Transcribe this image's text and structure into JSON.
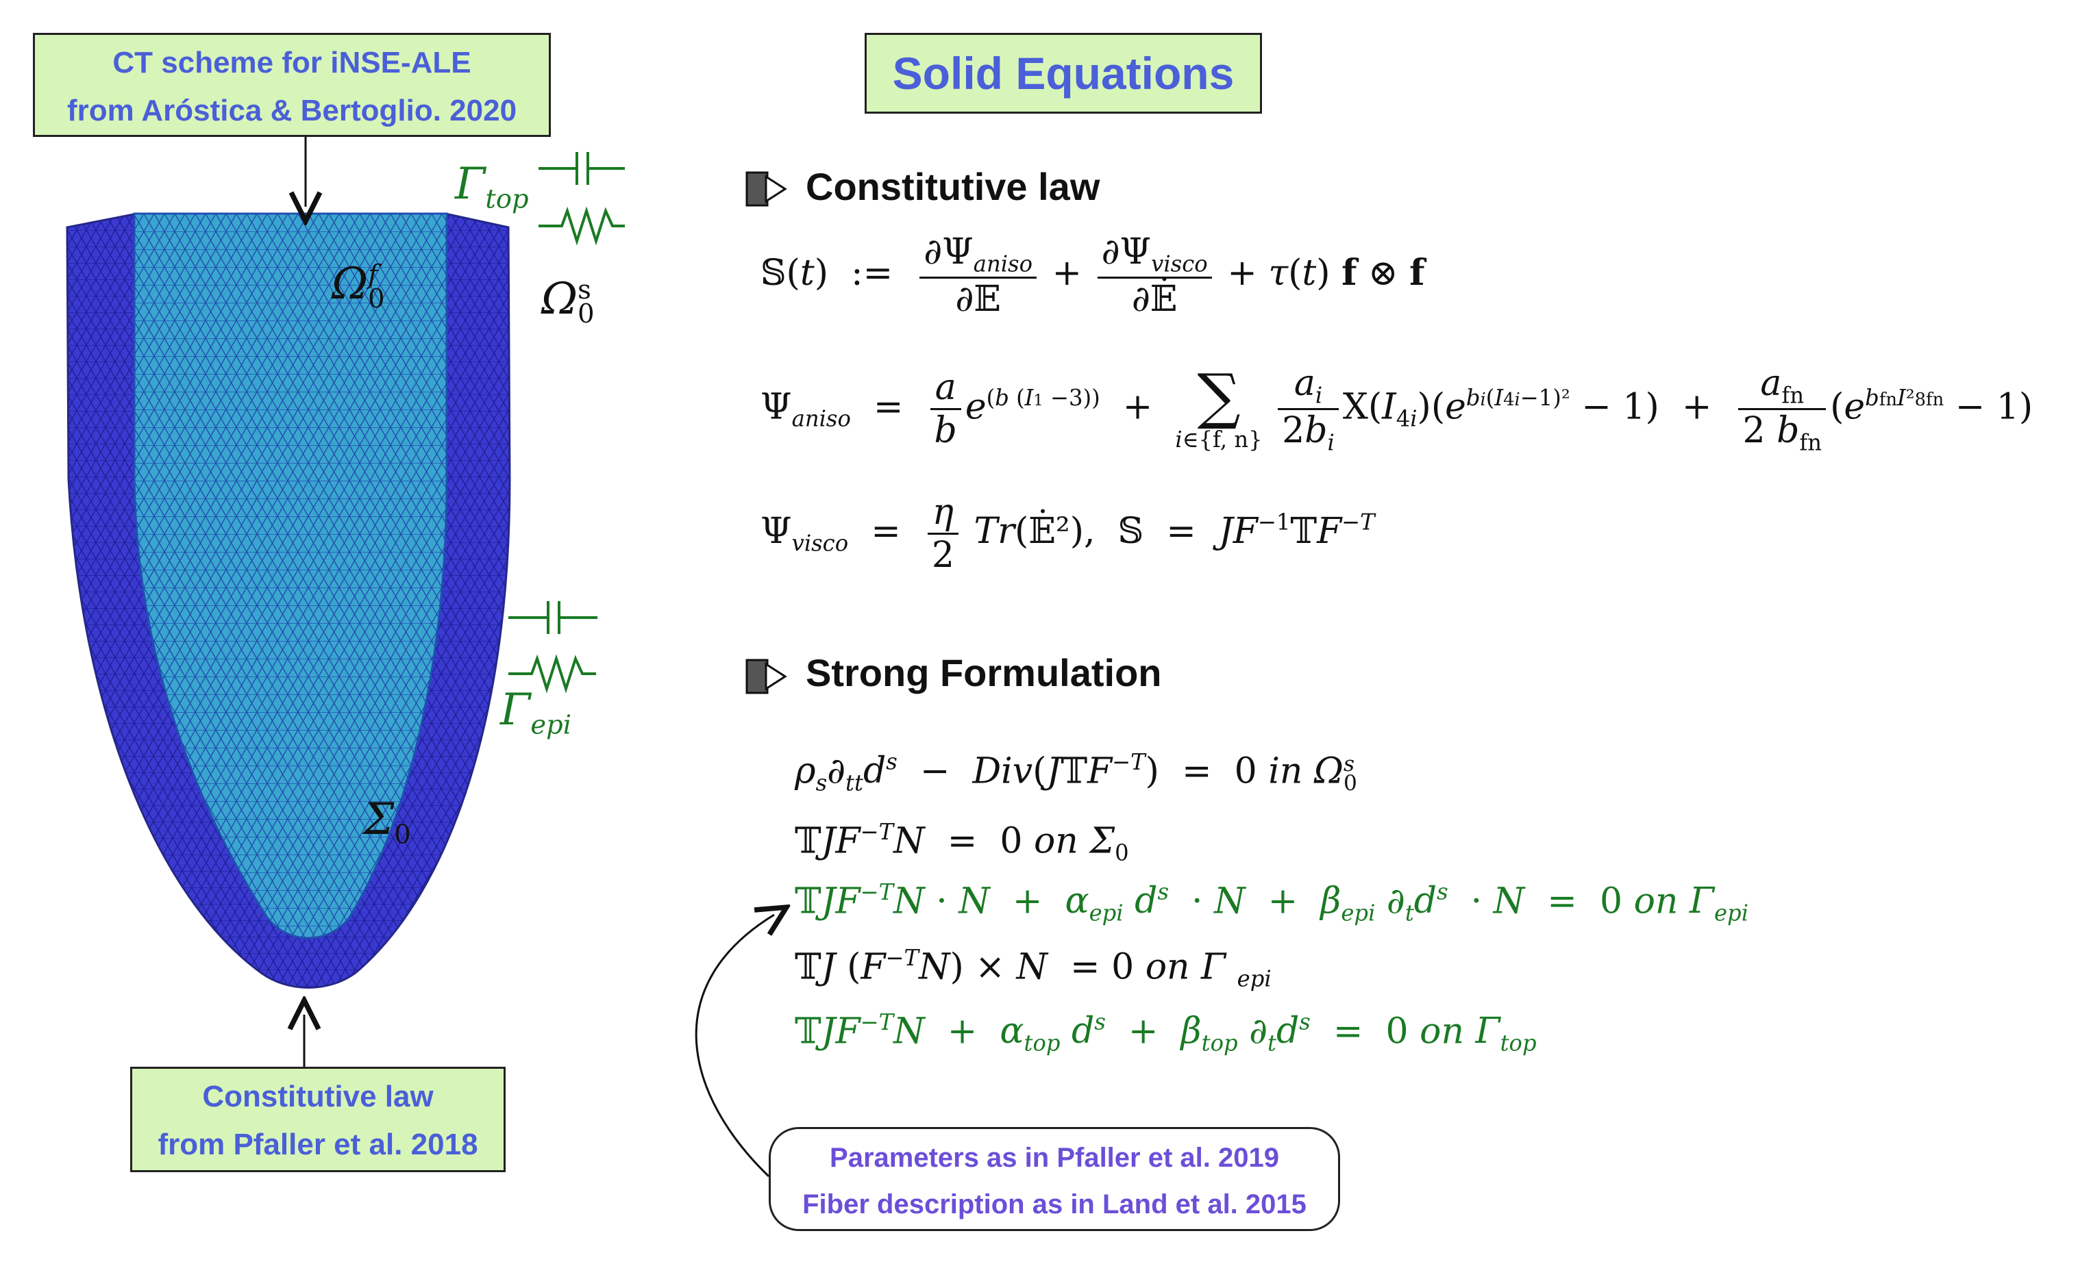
{
  "colors": {
    "box_fill": "#d7f5b8",
    "box_text": "#4a5fd8",
    "note_text": "#6a4fd8",
    "green": "#1a7a24",
    "mesh_outer": "#3333c8",
    "mesh_inner": "#33a0c8"
  },
  "boxes": {
    "ct_scheme": [
      "CT scheme for iNSE-ALE",
      "from Aróstica & Bertoglio. 2020"
    ],
    "constitutive_law": [
      "Constitutive law",
      "from Pfaller et al. 2018"
    ],
    "title": "Solid Equations",
    "notes": [
      "Parameters as in Pfaller et al. 2019",
      "Fiber description as in Land et al. 2015"
    ]
  },
  "labels": {
    "gamma_top": {
      "main": "Γ",
      "sub": "top"
    },
    "omega_f": {
      "main": "Ω",
      "sub": "0",
      "sup": "f"
    },
    "omega_s": {
      "main": "Ω",
      "sub": "0",
      "sup": "s"
    },
    "gamma_epi": {
      "main": "Γ",
      "sub": "epi"
    },
    "sigma0": {
      "main": "Σ",
      "sub": "0"
    }
  },
  "sections": {
    "constitutive": "Constitutive law",
    "strong": "Strong Formulation"
  },
  "icons": {
    "section_marker": "arrow-right-box-icon",
    "capacitor": "capacitor-icon",
    "resistor": "resistor-icon"
  }
}
